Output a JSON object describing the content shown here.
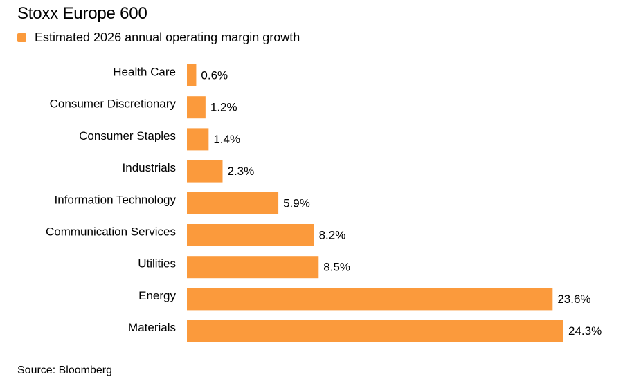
{
  "colors": {
    "bar": "#fb9a3c",
    "text": "#000000",
    "background": "#ffffff"
  },
  "chart_data": {
    "type": "bar",
    "orientation": "horizontal",
    "title": "Stoxx Europe 600",
    "legend": "Estimated 2026 annual operating margin growth",
    "legend_position": "top-left",
    "categories": [
      "Health Care",
      "Consumer Discretionary",
      "Consumer Staples",
      "Industrials",
      "Information Technology",
      "Communication Services",
      "Utilities",
      "Energy",
      "Materials"
    ],
    "values": [
      0.6,
      1.2,
      1.4,
      2.3,
      5.9,
      8.2,
      8.5,
      23.6,
      24.3
    ],
    "value_labels": [
      "0.6%",
      "1.2%",
      "1.4%",
      "2.3%",
      "5.9%",
      "8.2%",
      "8.5%",
      "23.6%",
      "24.3%"
    ],
    "xlim": [
      0,
      24.3
    ],
    "grid": false,
    "source": "Source: Bloomberg"
  }
}
